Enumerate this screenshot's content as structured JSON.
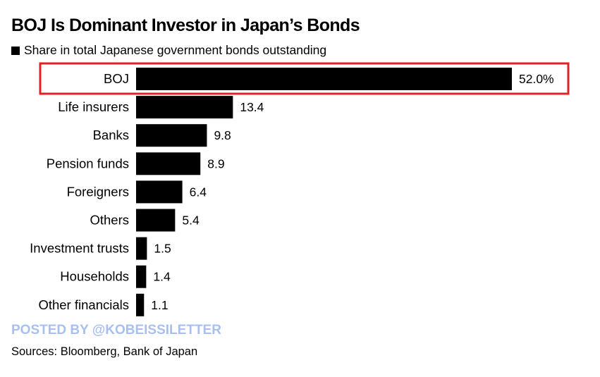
{
  "chart_data": {
    "type": "bar",
    "orientation": "horizontal",
    "title": "BOJ Is Dominant Investor in Japan’s Bonds",
    "legend": [
      {
        "name": "Share in total Japanese government bonds outstanding",
        "color": "#000000"
      }
    ],
    "categories": [
      "BOJ",
      "Life insurers",
      "Banks",
      "Pension funds",
      "Foreigners",
      "Others",
      "Investment trusts",
      "Households",
      "Other financials"
    ],
    "values": [
      52.0,
      13.4,
      9.8,
      8.9,
      6.4,
      5.4,
      1.5,
      1.4,
      1.1
    ],
    "data_labels": [
      "52.0%",
      "13.4",
      "9.8",
      "8.9",
      "6.4",
      "5.4",
      "1.5",
      "1.4",
      "1.1"
    ],
    "xlim": [
      0,
      52
    ],
    "grid": false,
    "legend_placement": "top-left",
    "highlight": {
      "category": "BOJ",
      "color": "#e0202a"
    },
    "bar_color": "#000000"
  },
  "watermark": {
    "text": "POSTED BY @KOBEISSILETTER",
    "color": "#a9bff0"
  },
  "source": "Sources: Bloomberg, Bank of Japan"
}
